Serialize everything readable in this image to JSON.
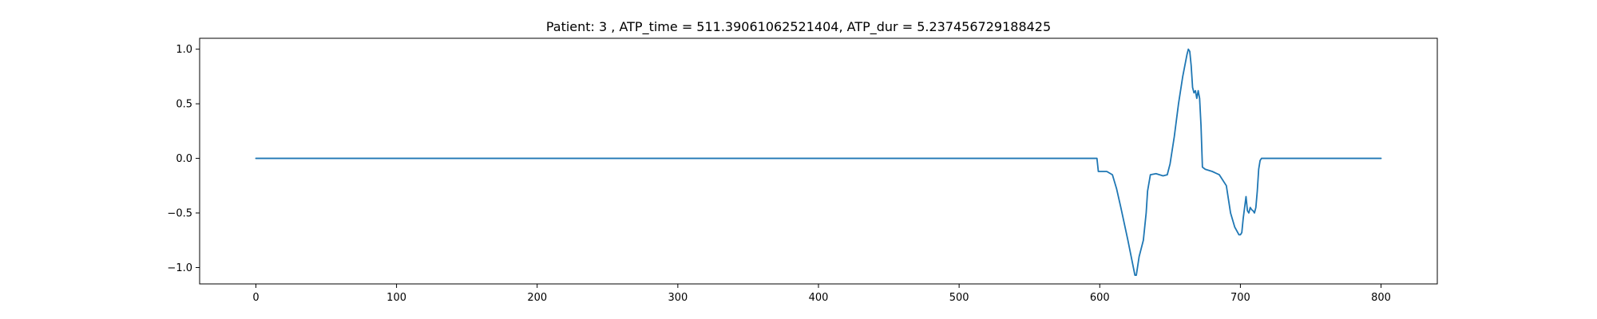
{
  "chart_data": {
    "type": "line",
    "title": "Patient: 3 , ATP_time = 511.39061062521404, ATP_dur = 5.237456729188425",
    "xlabel": "",
    "ylabel": "",
    "xlim": [
      -40,
      840
    ],
    "ylim": [
      -1.15,
      1.1
    ],
    "xticks": [
      0,
      100,
      200,
      300,
      400,
      500,
      600,
      700,
      800
    ],
    "xtick_labels": [
      "0",
      "100",
      "200",
      "300",
      "400",
      "500",
      "600",
      "700",
      "800"
    ],
    "yticks": [
      1.0,
      0.5,
      0.0,
      -0.5,
      -1.0
    ],
    "ytick_labels": [
      "1.0",
      "0.5",
      "0.0",
      "−0.5",
      "−1.0"
    ],
    "grid": false,
    "series": [
      {
        "color": "#1f77b4",
        "x": [
          0,
          100,
          200,
          300,
          400,
          500,
          597,
          598,
          599,
          600,
          605,
          609,
          612,
          615,
          620,
          625,
          626,
          628,
          629,
          631,
          633,
          634,
          636,
          640,
          645,
          648,
          650,
          653,
          656,
          659,
          662,
          663,
          664,
          665,
          666,
          667,
          668,
          669,
          670,
          671,
          672,
          673,
          675,
          680,
          685,
          690,
          693,
          696,
          699,
          700,
          701,
          702,
          703,
          704,
          705,
          706,
          707,
          708,
          709,
          710,
          711,
          712,
          713,
          714,
          715,
          716,
          720,
          750,
          800
        ],
        "values": [
          0,
          0,
          0,
          0,
          0,
          0,
          0,
          0.0,
          -0.12,
          -0.12,
          -0.12,
          -0.15,
          -0.28,
          -0.45,
          -0.75,
          -1.07,
          -1.07,
          -0.9,
          -0.85,
          -0.75,
          -0.5,
          -0.3,
          -0.15,
          -0.14,
          -0.16,
          -0.15,
          -0.05,
          0.2,
          0.5,
          0.75,
          0.95,
          1.0,
          0.98,
          0.85,
          0.65,
          0.6,
          0.62,
          0.55,
          0.62,
          0.55,
          0.3,
          -0.08,
          -0.1,
          -0.12,
          -0.15,
          -0.25,
          -0.5,
          -0.63,
          -0.7,
          -0.7,
          -0.68,
          -0.55,
          -0.45,
          -0.35,
          -0.48,
          -0.5,
          -0.45,
          -0.47,
          -0.48,
          -0.5,
          -0.45,
          -0.3,
          -0.1,
          -0.02,
          0.0,
          0.0,
          0.0,
          0.0,
          0.0
        ]
      }
    ]
  }
}
